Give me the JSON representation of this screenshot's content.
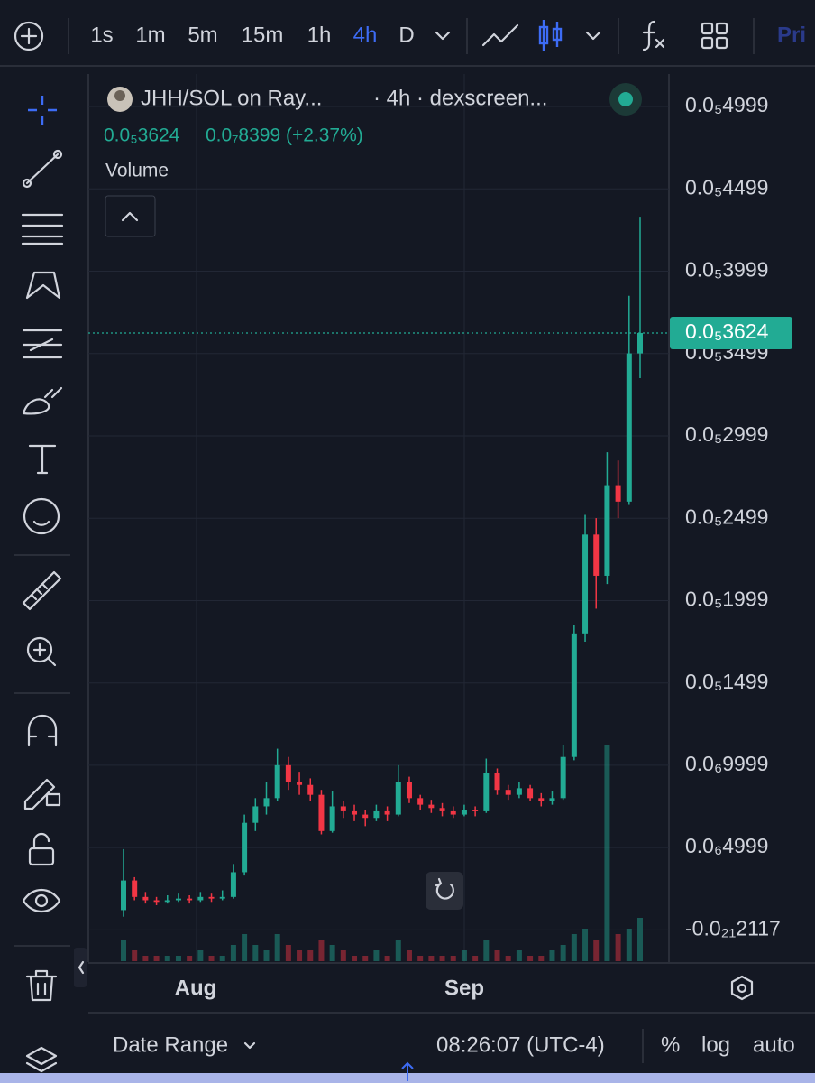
{
  "toolbar": {
    "intervals": [
      "1s",
      "1m",
      "5m",
      "15m",
      "1h",
      "4h",
      "D"
    ],
    "active": 5,
    "cut_label": "Pri"
  },
  "legend": {
    "title": "JHH/SOL on Ray...",
    "source": "· 4h · dexscreen...",
    "change": "0.0₇8399 (+2.37%)",
    "volume": "Volume"
  },
  "chart_data": {
    "type": "candlestick",
    "up_color": "#22ab94",
    "down_color": "#f23645",
    "ylim": [
      -1.9e-07,
      5.18e-06
    ],
    "yticks": [
      {
        "value": 4.999e-06,
        "label": "0.0₅4999"
      },
      {
        "value": 4.499e-06,
        "label": "0.0₅4499"
      },
      {
        "value": 3.999e-06,
        "label": "0.0₅3999"
      },
      {
        "value": 3.499e-06,
        "label": "0.0₅3499"
      },
      {
        "value": 2.999e-06,
        "label": "0.0₅2999"
      },
      {
        "value": 2.499e-06,
        "label": "0.0₅2499"
      },
      {
        "value": 1.999e-06,
        "label": "0.0₅1999"
      },
      {
        "value": 1.499e-06,
        "label": "0.0₅1499"
      },
      {
        "value": 9.999e-07,
        "label": "0.0₆9999"
      },
      {
        "value": 4.999e-07,
        "label": "0.0₆4999"
      },
      {
        "value": -2.117e-22,
        "label": "-0.0₂₁2117"
      }
    ],
    "last_price": {
      "value": 3.624e-06,
      "label": "0.0₅3624"
    },
    "x_labels": [
      "Aug",
      "Sep"
    ],
    "candles": [
      [
        1.2e-07,
        4.9e-07,
        8e-08,
        3e-07
      ],
      [
        3e-07,
        3.2e-07,
        1.8e-07,
        2e-07
      ],
      [
        2e-07,
        2.3e-07,
        1.6e-07,
        1.8e-07
      ],
      [
        1.8e-07,
        2e-07,
        1.5e-07,
        1.7e-07
      ],
      [
        1.7e-07,
        2.1e-07,
        1.6e-07,
        1.8e-07
      ],
      [
        1.8e-07,
        2.2e-07,
        1.7e-07,
        1.9e-07
      ],
      [
        1.9e-07,
        2.1e-07,
        1.6e-07,
        1.8e-07
      ],
      [
        1.8e-07,
        2.3e-07,
        1.7e-07,
        2e-07
      ],
      [
        2e-07,
        2.2e-07,
        1.7e-07,
        1.9e-07
      ],
      [
        1.9e-07,
        2.4e-07,
        1.8e-07,
        2e-07
      ],
      [
        2e-07,
        4e-07,
        1.9e-07,
        3.5e-07
      ],
      [
        3.5e-07,
        7e-07,
        3.3e-07,
        6.5e-07
      ],
      [
        6.5e-07,
        8e-07,
        6e-07,
        7.5e-07
      ],
      [
        7.5e-07,
        9e-07,
        7e-07,
        8e-07
      ],
      [
        8e-07,
        1.1e-06,
        7.8e-07,
        1e-06
      ],
      [
        1e-06,
        1.05e-06,
        8.5e-07,
        9e-07
      ],
      [
        9e-07,
        9.6e-07,
        8.2e-07,
        8.8e-07
      ],
      [
        8.8e-07,
        9.2e-07,
        7.8e-07,
        8.2e-07
      ],
      [
        8.2e-07,
        8.5e-07,
        5.8e-07,
        6e-07
      ],
      [
        6e-07,
        8.4e-07,
        5.9e-07,
        7.5e-07
      ],
      [
        7.5e-07,
        7.8e-07,
        6.8e-07,
        7.2e-07
      ],
      [
        7.2e-07,
        7.6e-07,
        6.6e-07,
        7e-07
      ],
      [
        7e-07,
        7.3e-07,
        6.3e-07,
        6.8e-07
      ],
      [
        6.8e-07,
        7.6e-07,
        6.6e-07,
        7.2e-07
      ],
      [
        7.2e-07,
        7.5e-07,
        6.6e-07,
        7e-07
      ],
      [
        7e-07,
        1e-06,
        6.9e-07,
        9e-07
      ],
      [
        9e-07,
        9.3e-07,
        7.7e-07,
        8e-07
      ],
      [
        8e-07,
        8.2e-07,
        7.3e-07,
        7.6e-07
      ],
      [
        7.6e-07,
        7.9e-07,
        7.1e-07,
        7.4e-07
      ],
      [
        7.4e-07,
        7.7e-07,
        6.9e-07,
        7.2e-07
      ],
      [
        7.2e-07,
        7.5e-07,
        6.8e-07,
        7e-07
      ],
      [
        7e-07,
        7.6e-07,
        6.9e-07,
        7.3e-07
      ],
      [
        7.3e-07,
        7.5e-07,
        6.9e-07,
        7.2e-07
      ],
      [
        7.2e-07,
        1.04e-06,
        7.1e-07,
        9.5e-07
      ],
      [
        9.5e-07,
        9.8e-07,
        8.2e-07,
        8.5e-07
      ],
      [
        8.5e-07,
        8.8e-07,
        7.9e-07,
        8.2e-07
      ],
      [
        8.2e-07,
        9e-07,
        8e-07,
        8.6e-07
      ],
      [
        8.6e-07,
        8.8e-07,
        7.8e-07,
        8e-07
      ],
      [
        8e-07,
        8.3e-07,
        7.5e-07,
        7.8e-07
      ],
      [
        7.8e-07,
        8.4e-07,
        7.6e-07,
        8e-07
      ],
      [
        8e-07,
        1.12e-06,
        7.9e-07,
        1.05e-06
      ],
      [
        1.05e-06,
        1.85e-06,
        1.03e-06,
        1.8e-06
      ],
      [
        1.8e-06,
        2.52e-06,
        1.75e-06,
        2.4e-06
      ],
      [
        2.4e-06,
        2.5e-06,
        1.95e-06,
        2.15e-06
      ],
      [
        2.15e-06,
        2.9e-06,
        2.1e-06,
        2.7e-06
      ],
      [
        2.7e-06,
        2.85e-06,
        2.5e-06,
        2.6e-06
      ],
      [
        2.6e-06,
        3.85e-06,
        2.58e-06,
        3.5e-06
      ],
      [
        3.5e-06,
        4.33e-06,
        3.35e-06,
        3.624e-06
      ]
    ],
    "volumes": [
      4,
      2,
      1,
      1,
      1,
      1,
      1,
      2,
      1,
      1,
      3,
      5,
      3,
      2,
      5,
      3,
      2,
      2,
      4,
      3,
      2,
      1,
      1,
      2,
      1,
      4,
      2,
      1,
      1,
      1,
      1,
      2,
      1,
      4,
      2,
      1,
      2,
      1,
      1,
      2,
      3,
      5,
      6,
      4,
      40,
      5,
      6,
      8
    ]
  },
  "status": {
    "date_range": "Date Range",
    "time": "08:26:07 (UTC-4)",
    "percent": "%",
    "log": "log",
    "auto": "auto"
  }
}
